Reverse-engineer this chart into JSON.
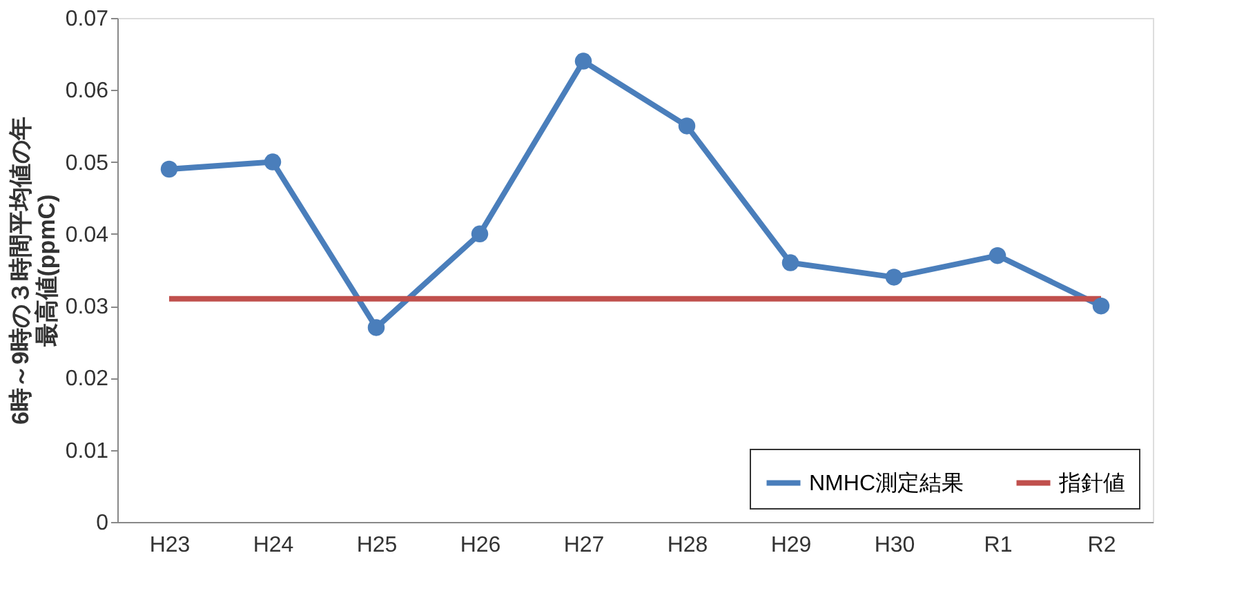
{
  "chart_data": {
    "type": "line",
    "ylabel": "6時～9時の３時間平均値の年最高値(ppmC)",
    "categories": [
      "H23",
      "H24",
      "H25",
      "H26",
      "H27",
      "H28",
      "H29",
      "H30",
      "R1",
      "R2"
    ],
    "series": [
      {
        "name": "NMHC測定結果",
        "color": "#4a7ebb",
        "marker": "circle",
        "values": [
          0.049,
          0.05,
          0.027,
          0.04,
          0.064,
          0.055,
          0.036,
          0.034,
          0.037,
          0.03
        ]
      },
      {
        "name": "指針値",
        "color": "#c0504d",
        "marker": "none",
        "values": [
          0.031,
          0.031,
          0.031,
          0.031,
          0.031,
          0.031,
          0.031,
          0.031,
          0.031,
          0.031
        ]
      }
    ],
    "ylim": [
      0,
      0.07
    ],
    "yticks": [
      0,
      0.01,
      0.02,
      0.03,
      0.04,
      0.05,
      0.06,
      0.07
    ],
    "grid": false,
    "legend": "bottom right"
  }
}
